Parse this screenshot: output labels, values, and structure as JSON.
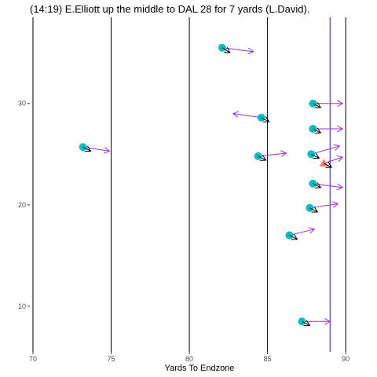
{
  "chart_data": {
    "type": "scatter",
    "title": "(14:19) E.Elliott up the middle to DAL 28 for 7 yards (L.David).",
    "xlabel": "Yards To Endzone",
    "ylabel": "",
    "xlim": [
      69.8,
      91.7
    ],
    "ylim": [
      5.5,
      38.5
    ],
    "x_ticks": [
      70,
      75,
      80,
      85,
      90
    ],
    "x_tick_labels": [
      "70",
      "75",
      "80",
      "85",
      "90"
    ],
    "y_ticks": [
      10,
      20,
      30
    ],
    "y_tick_labels": [
      "10",
      "20",
      "30"
    ],
    "grid": false,
    "yard_lines": [
      70,
      75,
      80,
      85,
      90
    ],
    "scrimmage_line": 89,
    "colors": {
      "players": "#00bfc4",
      "ball_carrier": "#f8766d",
      "direction": "#9b30d0",
      "orientation": "#000000",
      "scrimmage": "#2a1e8f",
      "yard_line": "#000000"
    },
    "players": [
      {
        "x": 82.1,
        "y": 35.5,
        "dir": [
          2.0,
          -0.4
        ],
        "o": [
          0.5,
          -0.5
        ]
      },
      {
        "x": 73.2,
        "y": 25.7,
        "dir": [
          1.7,
          -0.4
        ],
        "o": [
          0.5,
          -0.4
        ]
      },
      {
        "x": 84.6,
        "y": 28.6,
        "dir": [
          -1.8,
          0.4
        ],
        "o": [
          0.5,
          -0.4
        ]
      },
      {
        "x": 84.4,
        "y": 24.8,
        "dir": [
          1.8,
          0.3
        ],
        "o": [
          0.5,
          -0.4
        ]
      },
      {
        "x": 87.9,
        "y": 30.0,
        "dir": [
          1.9,
          0.0
        ],
        "o": [
          0.5,
          -0.4
        ]
      },
      {
        "x": 87.9,
        "y": 27.5,
        "dir": [
          1.9,
          0.0
        ],
        "o": [
          0.5,
          -0.4
        ]
      },
      {
        "x": 87.8,
        "y": 25.0,
        "dir": [
          1.8,
          0.8
        ],
        "o": [
          0.5,
          -0.4
        ]
      },
      {
        "x": 87.9,
        "y": 22.1,
        "dir": [
          1.9,
          -0.4
        ],
        "o": [
          0.5,
          -0.4
        ]
      },
      {
        "x": 87.7,
        "y": 19.7,
        "dir": [
          1.8,
          0.4
        ],
        "o": [
          0.5,
          -0.4
        ]
      },
      {
        "x": 86.4,
        "y": 17.0,
        "dir": [
          1.6,
          0.6
        ],
        "o": [
          0.5,
          -0.4
        ]
      },
      {
        "x": 87.2,
        "y": 8.5,
        "dir": [
          1.8,
          0.0
        ],
        "o": [
          0.5,
          -0.4
        ]
      }
    ],
    "ball_carrier": {
      "x": 88.6,
      "y": 24.1,
      "dir": [
        1.2,
        0.6
      ],
      "o": [
        0.5,
        -0.4
      ]
    }
  }
}
